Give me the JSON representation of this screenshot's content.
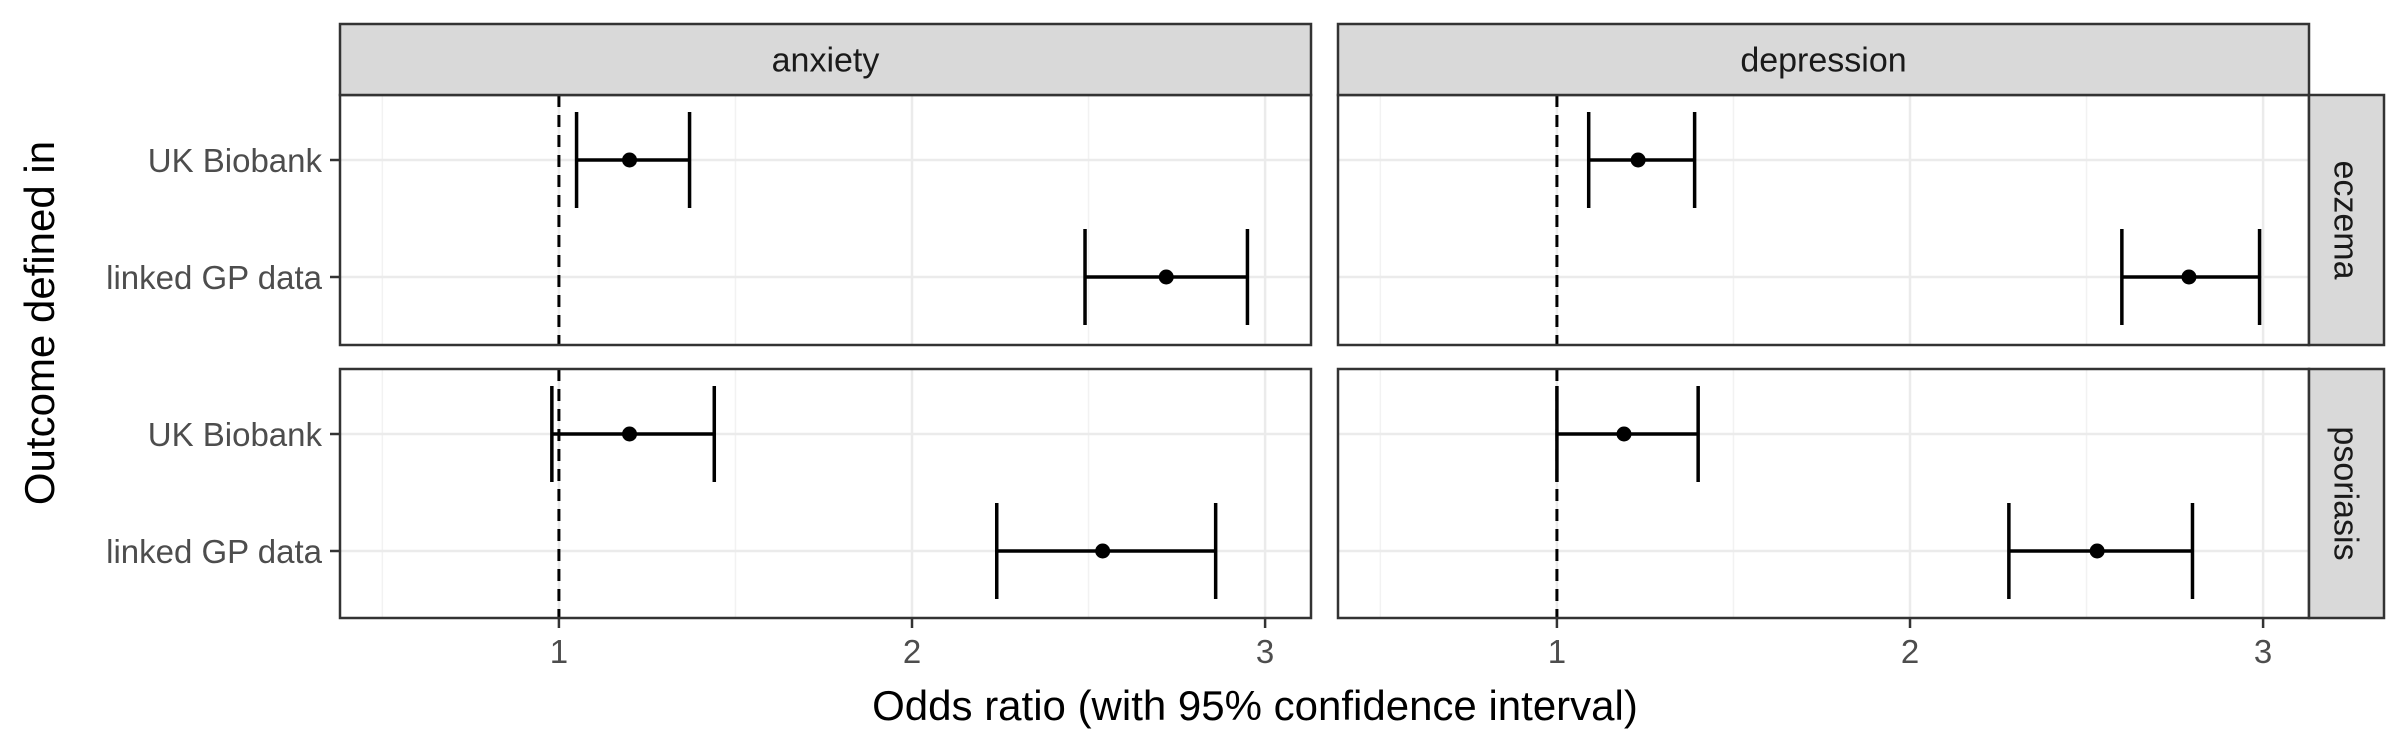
{
  "chart_data": {
    "type": "forest",
    "xlabel": "Odds ratio (with 95% confidence interval)",
    "ylabel": "Outcome defined in",
    "xlim": [
      0.38,
      3.13
    ],
    "x_ticks": [
      1,
      2,
      3
    ],
    "x_tick_labels": [
      "1",
      "2",
      "3"
    ],
    "reference_line": 1,
    "grid": true,
    "column_facets": [
      "anxiety",
      "depression"
    ],
    "row_facets": [
      "eczema",
      "psoriasis"
    ],
    "categories": [
      "UK Biobank",
      "linked GP data"
    ],
    "panels": [
      {
        "row": "eczema",
        "column": "anxiety",
        "points": [
          {
            "category": "UK Biobank",
            "estimate": 1.2,
            "lower": 1.05,
            "upper": 1.37
          },
          {
            "category": "linked GP data",
            "estimate": 2.72,
            "lower": 2.49,
            "upper": 2.95
          }
        ]
      },
      {
        "row": "eczema",
        "column": "depression",
        "points": [
          {
            "category": "UK Biobank",
            "estimate": 1.23,
            "lower": 1.09,
            "upper": 1.39
          },
          {
            "category": "linked GP data",
            "estimate": 2.79,
            "lower": 2.6,
            "upper": 2.99
          }
        ]
      },
      {
        "row": "psoriasis",
        "column": "anxiety",
        "points": [
          {
            "category": "UK Biobank",
            "estimate": 1.2,
            "lower": 0.98,
            "upper": 1.44
          },
          {
            "category": "linked GP data",
            "estimate": 2.54,
            "lower": 2.24,
            "upper": 2.86
          }
        ]
      },
      {
        "row": "psoriasis",
        "column": "depression",
        "points": [
          {
            "category": "UK Biobank",
            "estimate": 1.19,
            "lower": 1.0,
            "upper": 1.4
          },
          {
            "category": "linked GP data",
            "estimate": 2.53,
            "lower": 2.28,
            "upper": 2.8
          }
        ]
      }
    ]
  }
}
